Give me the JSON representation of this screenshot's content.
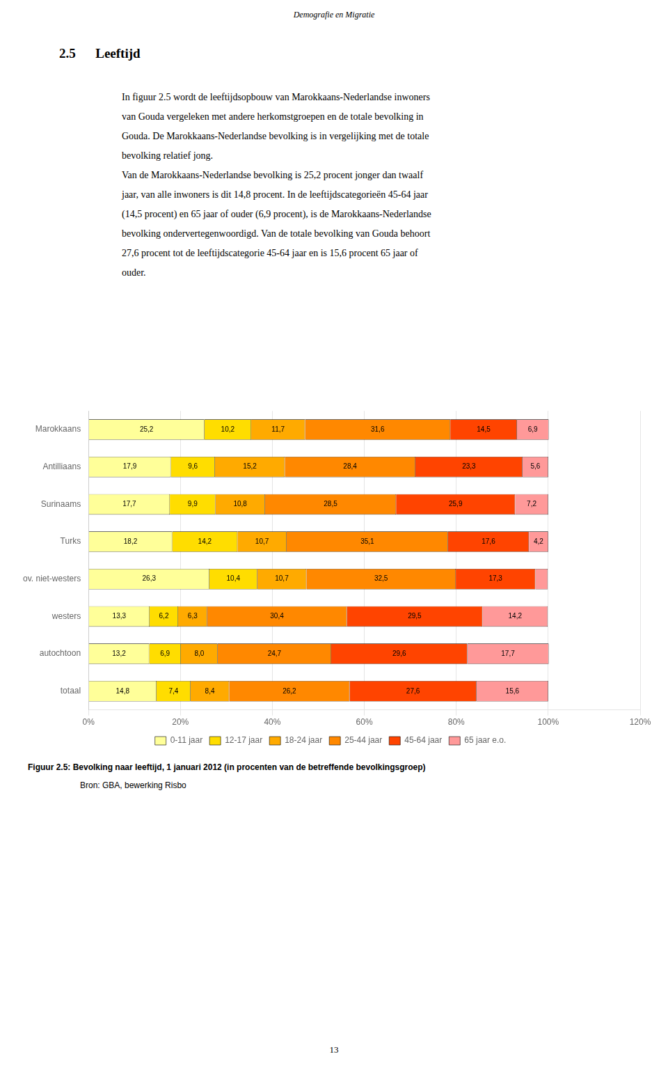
{
  "chart_data": {
    "type": "bar",
    "orientation": "horizontal",
    "stacked": true,
    "title": "Figuur 2.5:  Bevolking naar leeftijd, 1 januari 2012 (in procenten van de betreffende bevolkingsgroep)",
    "subtitle": "Bron: GBA, bewerking Risbo",
    "annotations": [
      "Demografie en Migratie",
      "2.5      Leeftijd",
      "In figuur 2.5 wordt de leeftijdsopbouw van Marokkaans-Nederlandse inwoners",
      "van Gouda vergeleken met andere herkomstgroepen en de totale bevolking in",
      "Gouda. De Marokkaans-Nederlandse bevolking is in vergelijking met de totale",
      "bevolking relatief jong.",
      "Van de Marokkaans-Nederlandse bevolking is 25,2 procent jonger dan twaalf",
      "jaar, van alle inwoners is dit 14,8 procent. In de leeftijdscategorieën 45-64 jaar",
      "(14,5 procent) en 65 jaar of ouder (6,9 procent), is de Marokkaans-Nederlandse",
      "bevolking ondervertegenwoordigd. Van de totale bevolking van Gouda behoort",
      "27,6 procent tot de leeftijdscategorie 45-64 jaar en is 15,6 procent 65 jaar of",
      "ouder.",
      "13"
    ],
    "categories": [
      "Marokkaans",
      "Antilliaans",
      "Surinaams",
      "Turks",
      "ov. niet-westers",
      "westers",
      "autochtoon",
      "totaal"
    ],
    "series": [
      {
        "name": "0-11 jaar",
        "color": "#ffff99",
        "values": [
          25.2,
          17.9,
          17.7,
          18.2,
          26.3,
          13.3,
          13.2,
          14.8
        ],
        "value_labels": [
          "25,2",
          "17,9",
          "17,7",
          "18,2",
          "26,3",
          "13,3",
          "13,2",
          "14,8"
        ]
      },
      {
        "name": "12-17 jaar",
        "color": "#ffdd00",
        "values": [
          10.2,
          9.6,
          9.9,
          14.2,
          10.4,
          6.2,
          6.9,
          7.4
        ],
        "value_labels": [
          "10,2",
          "9,6",
          "9,9",
          "14,2",
          "10,4",
          "6,2",
          "6,9",
          "7,4"
        ]
      },
      {
        "name": "18-24 jaar",
        "color": "#ffaa00",
        "values": [
          11.7,
          15.2,
          10.8,
          10.7,
          10.7,
          6.3,
          8.0,
          8.4
        ],
        "value_labels": [
          "11,7",
          "15,2",
          "10,8",
          "10,7",
          "10,7",
          "6,3",
          "8,0",
          "8,4"
        ]
      },
      {
        "name": "25-44 jaar",
        "color": "#ff8800",
        "values": [
          31.6,
          28.4,
          28.5,
          35.1,
          32.5,
          30.4,
          24.7,
          26.2
        ],
        "value_labels": [
          "31,6",
          "28,4",
          "28,5",
          "35,1",
          "32,5",
          "30,4",
          "24,7",
          "26,2"
        ]
      },
      {
        "name": "45-64 jaar",
        "color": "#ff4400",
        "values": [
          14.5,
          23.3,
          25.9,
          17.6,
          17.3,
          29.5,
          29.6,
          27.6
        ],
        "value_labels": [
          "14,5",
          "23,3",
          "25,9",
          "17,6",
          "17,3",
          "29,5",
          "29,6",
          "27,6"
        ]
      },
      {
        "name": "65 jaar e.o.",
        "color": "#ff9999",
        "values": [
          6.9,
          5.6,
          7.2,
          4.2,
          2.7,
          14.2,
          17.7,
          15.6
        ],
        "value_labels": [
          "6,9",
          "5,6",
          "7,2",
          "4,2",
          null,
          "14,2",
          "17,7",
          "15,6"
        ]
      }
    ],
    "xlim": [
      0,
      120
    ],
    "xticks": [
      {
        "value": 0,
        "label": "0%"
      },
      {
        "value": 20,
        "label": "20%"
      },
      {
        "value": 40,
        "label": "40%"
      },
      {
        "value": 60,
        "label": "60%"
      },
      {
        "value": 80,
        "label": "80%"
      },
      {
        "value": 100,
        "label": "100%"
      },
      {
        "value": 120,
        "label": "120%"
      }
    ],
    "grid": true,
    "legend": "bottom",
    "data_labels": true
  }
}
